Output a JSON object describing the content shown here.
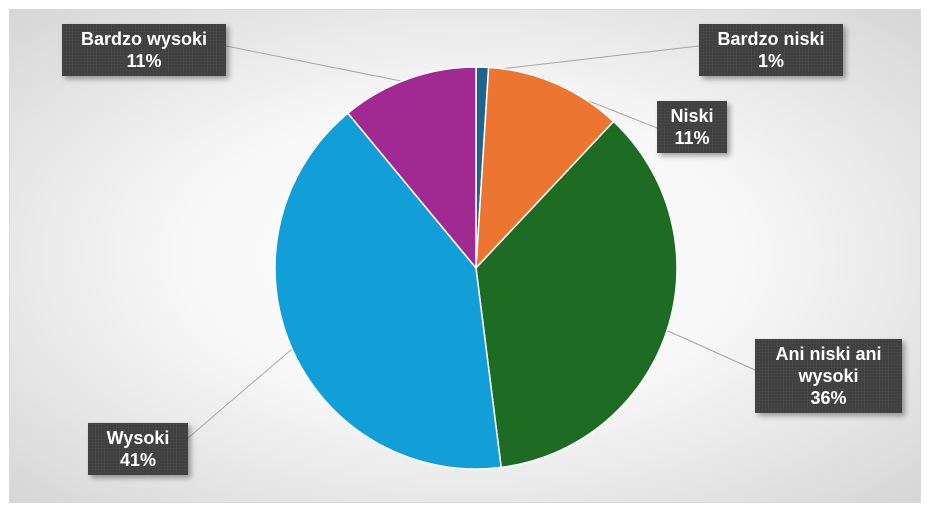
{
  "chart_data": {
    "type": "pie",
    "slices": [
      {
        "name": "Bardzo niski",
        "value": 1,
        "label": "1%",
        "color": "#1f6391"
      },
      {
        "name": "Niski",
        "value": 11,
        "label": "11%",
        "color": "#ed7532"
      },
      {
        "name": "Ani niski ani wysoki",
        "value": 36,
        "label": "36%",
        "color": "#1e6b24"
      },
      {
        "name": "Wysoki",
        "value": 41,
        "label": "41%",
        "color": "#129fd8"
      },
      {
        "name": "Bardzo wysoki",
        "value": 11,
        "label": "11%",
        "color": "#a02a91"
      }
    ],
    "data_labels": [
      {
        "lines": [
          "Bardzo niski"
        ],
        "pct": "1%"
      },
      {
        "lines": [
          "Niski"
        ],
        "pct": "11%"
      },
      {
        "lines": [
          "Ani niski ani",
          "wysoki"
        ],
        "pct": "36%"
      },
      {
        "lines": [
          "Wysoki"
        ],
        "pct": "41%"
      },
      {
        "lines": [
          "Bardzo wysoki"
        ],
        "pct": "11%"
      }
    ]
  }
}
